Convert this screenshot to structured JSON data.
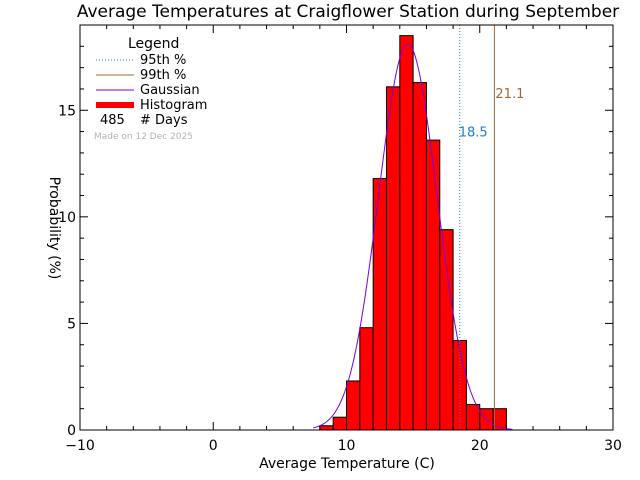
{
  "colors": {
    "background": "#ffffff",
    "axis": "#000000",
    "histogram_fill": "#ff0000",
    "histogram_edge": "#000000",
    "gaussian": "#7a00d9",
    "p95": "#1e7fd0",
    "p99": "#9a6a35",
    "made_on": "#b3b3b3"
  },
  "chart_data": {
    "type": "bar",
    "title": "Average Temperatures at Craigflower Station during September",
    "xlabel": "Average Temperature (C)",
    "ylabel": "Probability (%)",
    "xlim": [
      -10,
      30
    ],
    "ylim": [
      0,
      19
    ],
    "x_ticks": [
      -10,
      0,
      10,
      20,
      30
    ],
    "y_ticks": [
      0,
      5,
      10,
      15
    ],
    "histogram": {
      "bin_width": 1,
      "bins": [
        {
          "start": 8,
          "value": 0.2
        },
        {
          "start": 9,
          "value": 0.6
        },
        {
          "start": 10,
          "value": 2.3
        },
        {
          "start": 11,
          "value": 4.8
        },
        {
          "start": 12,
          "value": 11.8
        },
        {
          "start": 13,
          "value": 16.1
        },
        {
          "start": 14,
          "value": 18.5
        },
        {
          "start": 15,
          "value": 16.3
        },
        {
          "start": 16,
          "value": 13.6
        },
        {
          "start": 17,
          "value": 9.4
        },
        {
          "start": 18,
          "value": 4.2
        },
        {
          "start": 19,
          "value": 1.2
        },
        {
          "start": 20,
          "value": 1.0
        },
        {
          "start": 21,
          "value": 1.0
        }
      ]
    },
    "gaussian": {
      "mean": 14.6,
      "sigma": 2.2,
      "peak": 18.1
    },
    "percentile_95": {
      "value": 18.5,
      "label": "18.5"
    },
    "percentile_99": {
      "value": 21.1,
      "label": "21.1"
    },
    "grid": false
  },
  "legend": {
    "title": "Legend",
    "items": [
      {
        "label": "95th %",
        "style": "dotted"
      },
      {
        "label": "99th %",
        "style": "solid"
      },
      {
        "label": "Gaussian",
        "style": "solid"
      },
      {
        "label": "Histogram",
        "style": "thick"
      }
    ],
    "count_value": "485",
    "count_label": "# Days"
  },
  "made_on": "Made on 12 Dec 2025"
}
